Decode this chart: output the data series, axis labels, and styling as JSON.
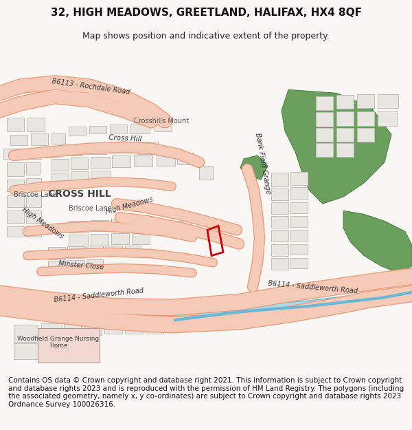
{
  "title": "32, HIGH MEADOWS, GREETLAND, HALIFAX, HX4 8QF",
  "subtitle": "Map shows position and indicative extent of the property.",
  "footer": "Contains OS data © Crown copyright and database right 2021. This information is subject to Crown copyright and database rights 2023 and is reproduced with the permission of HM Land Registry. The polygons (including the associated geometry, namely x, y co-ordinates) are subject to Crown copyright and database rights 2023 Ordnance Survey 100026316.",
  "bg_color": "#f0eeea",
  "map_bg": "#f8f7f4",
  "road_color": "#f5cbb8",
  "road_outline": "#e8a080",
  "building_color": "#e8e6e0",
  "building_outline": "#c8c6c0",
  "green_color": "#6a9f5e",
  "water_color": "#7ab8d0",
  "water_fill": "#a8d4e8",
  "highlight_color": "#cc0000",
  "text_color": "#333333",
  "title_fontsize": 11,
  "subtitle_fontsize": 9,
  "footer_fontsize": 7.5
}
